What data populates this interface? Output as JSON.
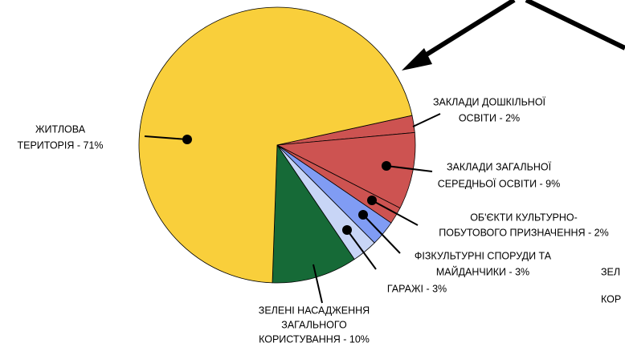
{
  "chart_data": {
    "type": "pie",
    "categories": [
      [
        "ЗАКЛАДИ ДОШКІЛЬНОЇ",
        "ОСВІТИ - 2%"
      ],
      [
        "ЗАКЛАДИ ЗАГАЛЬНОЇ",
        "СЕРЕДНЬОЇ ОСВІТИ - 9%"
      ],
      [
        "ОБ'ЄКТИ КУЛЬТУРНО-",
        "ПОБУТОВОГО ПРИЗНАЧЕННЯ - 2%"
      ],
      [
        "ФІЗКУЛЬТУРНІ СПОРУДИ ТА",
        "МАЙДАНЧИКИ - 3%"
      ],
      [
        "ГАРАЖІ - 3%"
      ],
      [
        "ЗЕЛЕНІ НАСАДЖЕННЯ",
        "ЗАГАЛЬНОГО",
        "КОРИСТУВАННЯ - 10%"
      ],
      [
        "ЖИТЛОВА",
        "ТЕРИТОРІЯ - 71%"
      ]
    ],
    "values": [
      2,
      9,
      2,
      3,
      3,
      10,
      71
    ],
    "colors": [
      "#cd5351",
      "#cd5351",
      "#cd5351",
      "#809cf4",
      "#c8d5f6",
      "#166a37",
      "#f9cf3b"
    ],
    "cropped_text": [
      "ЗЕЛ",
      "КОР"
    ]
  }
}
